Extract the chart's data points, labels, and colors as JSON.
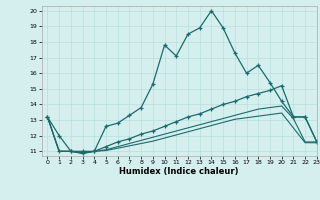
{
  "xlabel": "Humidex (Indice chaleur)",
  "xlim": [
    -0.5,
    23
  ],
  "ylim": [
    10.7,
    20.3
  ],
  "yticks": [
    11,
    12,
    13,
    14,
    15,
    16,
    17,
    18,
    19,
    20
  ],
  "xticks": [
    0,
    1,
    2,
    3,
    4,
    5,
    6,
    7,
    8,
    9,
    10,
    11,
    12,
    13,
    14,
    15,
    16,
    17,
    18,
    19,
    20,
    21,
    22,
    23
  ],
  "bg_color": "#d5efef",
  "grid_color": "#b8dede",
  "line_color": "#1a6b6b",
  "line1_x": [
    0,
    1,
    2,
    3,
    4,
    5,
    6,
    7,
    8,
    9,
    10,
    11,
    12,
    13,
    14,
    15,
    16,
    17,
    18,
    19,
    20,
    21,
    22,
    23
  ],
  "line1_y": [
    13.2,
    12.0,
    11.0,
    10.9,
    11.0,
    12.6,
    12.8,
    13.3,
    13.8,
    15.3,
    17.8,
    17.1,
    18.5,
    18.9,
    20.0,
    18.9,
    17.3,
    16.0,
    16.5,
    15.4,
    14.2,
    13.2,
    13.2,
    11.6
  ],
  "line2_x": [
    0,
    1,
    2,
    3,
    4,
    5,
    6,
    7,
    8,
    9,
    10,
    11,
    12,
    13,
    14,
    15,
    16,
    17,
    18,
    19,
    20,
    21,
    22,
    23
  ],
  "line2_y": [
    13.2,
    11.0,
    11.0,
    11.0,
    11.0,
    11.3,
    11.6,
    11.8,
    12.1,
    12.3,
    12.6,
    12.9,
    13.2,
    13.4,
    13.7,
    14.0,
    14.2,
    14.5,
    14.7,
    14.9,
    15.2,
    13.2,
    13.2,
    11.6
  ],
  "line3_x": [
    0,
    1,
    2,
    3,
    4,
    5,
    6,
    7,
    8,
    9,
    10,
    11,
    12,
    13,
    14,
    15,
    16,
    17,
    18,
    19,
    20,
    21,
    22,
    23
  ],
  "line3_y": [
    13.2,
    11.0,
    11.0,
    10.9,
    11.0,
    11.1,
    11.3,
    11.5,
    11.7,
    11.9,
    12.1,
    12.3,
    12.5,
    12.7,
    12.9,
    13.1,
    13.3,
    13.5,
    13.7,
    13.8,
    13.9,
    13.1,
    11.6,
    11.6
  ],
  "line4_x": [
    0,
    1,
    2,
    3,
    4,
    5,
    6,
    7,
    8,
    9,
    10,
    11,
    12,
    13,
    14,
    15,
    16,
    17,
    18,
    19,
    20,
    21,
    22,
    23
  ],
  "line4_y": [
    13.2,
    11.0,
    11.0,
    10.85,
    11.0,
    11.05,
    11.2,
    11.35,
    11.5,
    11.65,
    11.85,
    12.05,
    12.25,
    12.45,
    12.65,
    12.85,
    13.05,
    13.15,
    13.25,
    13.35,
    13.45,
    12.5,
    11.55,
    11.55
  ]
}
